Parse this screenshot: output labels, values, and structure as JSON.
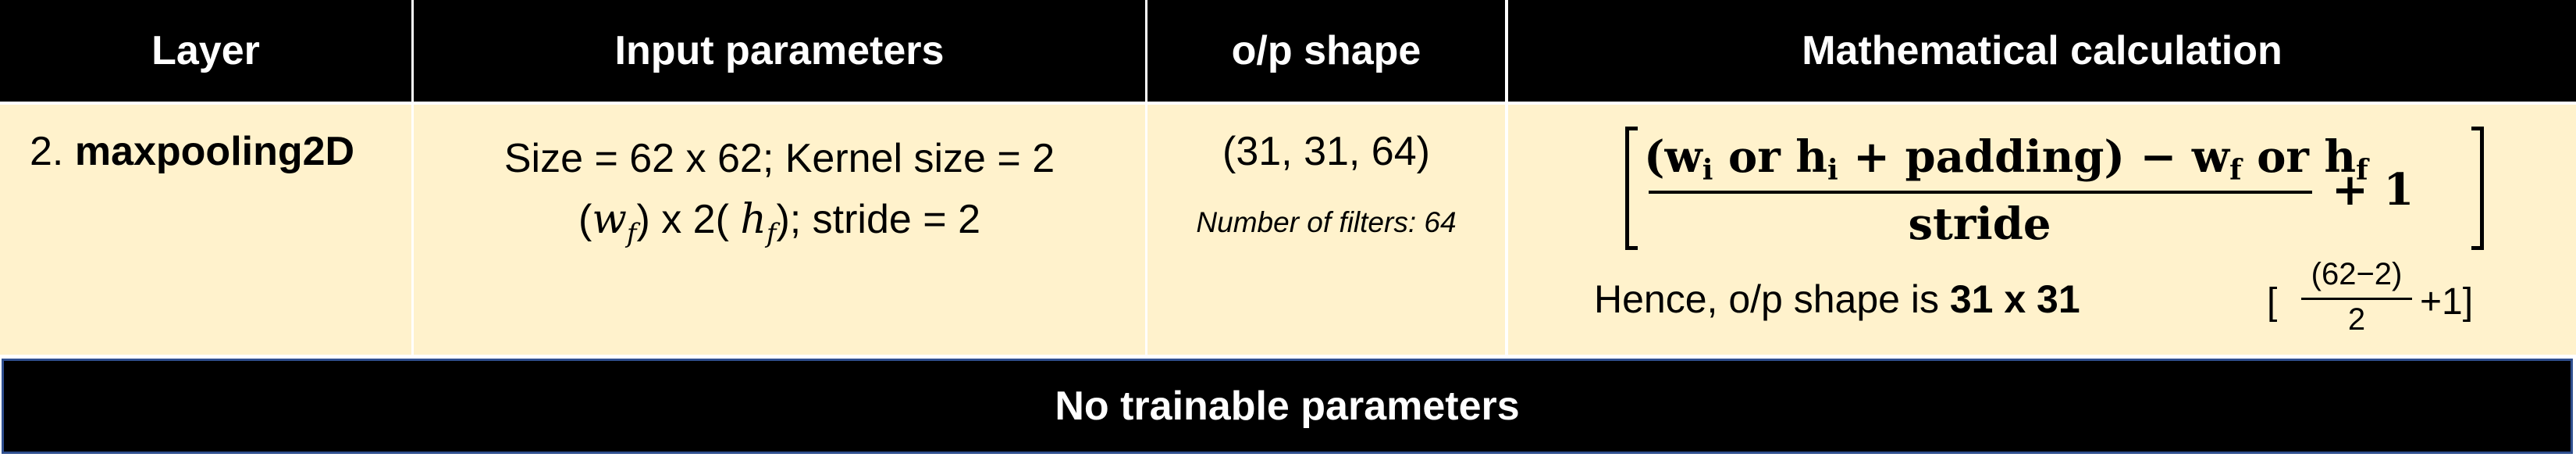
{
  "headers": {
    "layer": "Layer",
    "input": "Input parameters",
    "output": "o/p shape",
    "math": "Mathematical calculation"
  },
  "row": {
    "layer_number": "2.",
    "layer_name": "maxpooling2D",
    "input_line1": "Size = 62 x 62; Kernel size  = 2",
    "input_wf": "w",
    "input_wf_sub": "f",
    "input_mid": ") x 2(",
    "input_hf": "h",
    "input_hf_sub": "f",
    "input_tail": "); stride = 2",
    "output_shape": "(31, 31, 64)",
    "filters_note": "Number of filters: 64",
    "formula": {
      "numerator_pre": "(w",
      "numerator_sub_i1": "i",
      "numerator_or1": " or h",
      "numerator_sub_i2": "i",
      "numerator_mid": " + padding) − w",
      "numerator_sub_f1": "f",
      "numerator_or2": " or h",
      "numerator_sub_f2": "f",
      "denominator": "stride",
      "plus_one": "+ 1"
    },
    "hence_text": "Hence, o/p shape is ",
    "hence_value": "31 x 31",
    "small_formula": {
      "open": "[",
      "numerator": "(62−2)",
      "denominator": "2",
      "tail": "+1]"
    }
  },
  "footer": "No trainable parameters"
}
